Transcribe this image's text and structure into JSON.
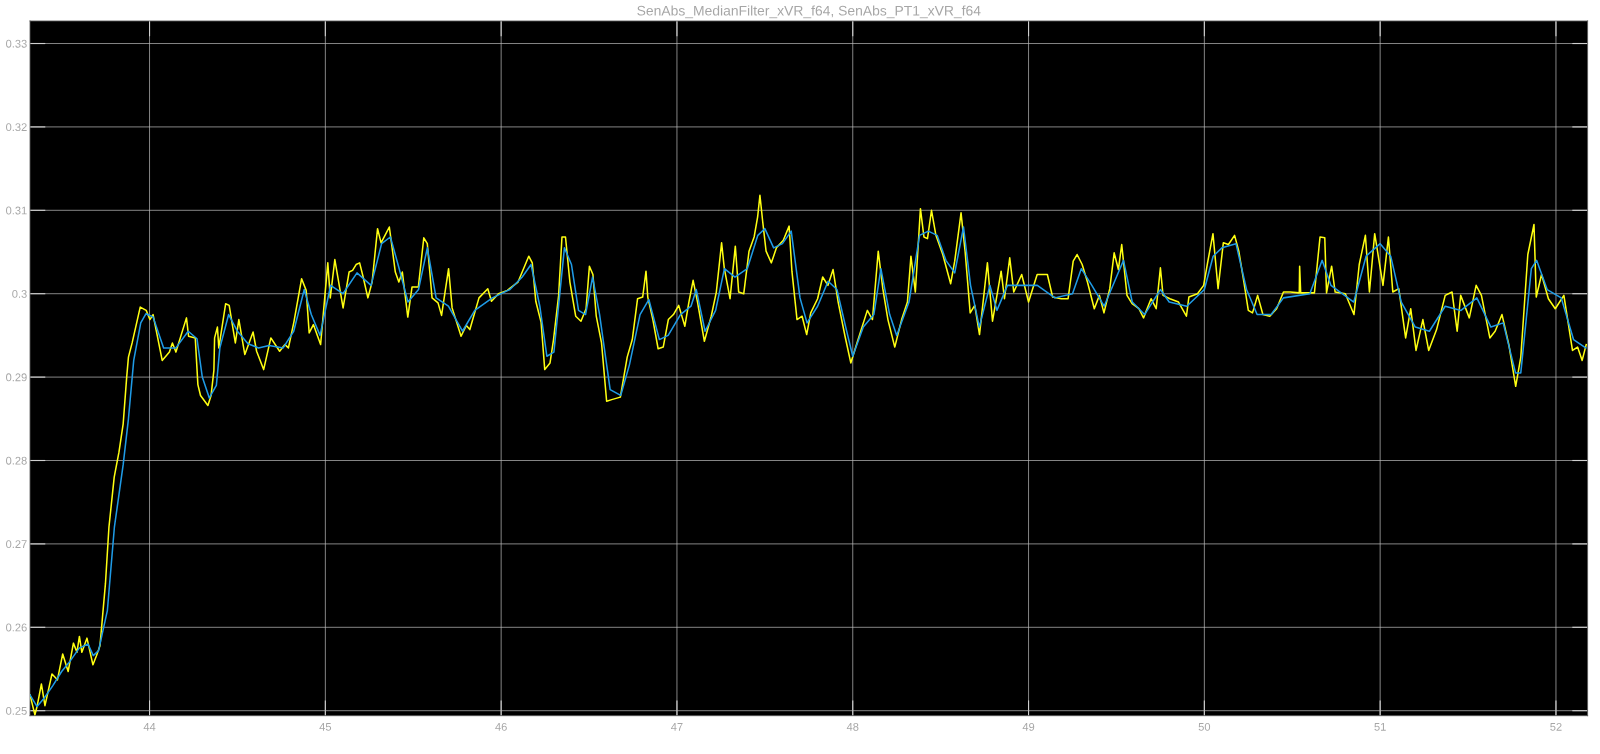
{
  "chart_data": {
    "type": "line",
    "title": "SenAbs_MedianFilter_xVR_f64, SenAbs_PT1_xVR_f64",
    "xlim": [
      43.32,
      52.18
    ],
    "ylim": [
      0.2494,
      0.3327
    ],
    "xticks": [
      44,
      45,
      46,
      47,
      48,
      49,
      50,
      51,
      52
    ],
    "yticks": [
      0.25,
      0.26,
      0.27,
      0.28,
      0.29,
      0.3,
      0.31,
      0.32,
      0.33
    ],
    "grid": true,
    "series": [
      {
        "color": "#ffff11",
        "x": [
          43.32,
          43.348,
          43.36,
          43.385,
          43.405,
          43.445,
          43.476,
          43.506,
          43.537,
          43.567,
          43.587,
          43.601,
          43.615,
          43.644,
          43.678,
          43.698,
          43.718,
          43.749,
          43.769,
          43.799,
          43.826,
          43.85,
          43.87,
          43.88,
          43.901,
          43.947,
          43.981,
          44.002,
          44.02,
          44.072,
          44.113,
          44.13,
          44.15,
          44.21,
          44.222,
          44.26,
          44.275,
          44.29,
          44.332,
          44.35,
          44.366,
          44.37,
          44.386,
          44.394,
          44.433,
          44.453,
          44.488,
          44.508,
          44.542,
          44.589,
          44.609,
          44.649,
          44.69,
          44.74,
          44.77,
          44.79,
          44.821,
          44.865,
          44.891,
          44.908,
          44.932,
          44.973,
          45.014,
          45.028,
          45.054,
          45.101,
          45.135,
          45.155,
          45.175,
          45.195,
          45.215,
          45.242,
          45.266,
          45.297,
          45.317,
          45.337,
          45.364,
          45.398,
          45.418,
          45.438,
          45.469,
          45.493,
          45.529,
          45.56,
          45.58,
          45.607,
          45.641,
          45.661,
          45.701,
          45.721,
          45.772,
          45.802,
          45.822,
          45.874,
          45.924,
          45.945,
          45.985,
          46.035,
          46.096,
          46.157,
          46.177,
          46.197,
          46.227,
          46.248,
          46.278,
          46.298,
          46.327,
          46.346,
          46.366,
          46.391,
          46.424,
          46.454,
          46.483,
          46.502,
          46.522,
          46.541,
          46.571,
          46.6,
          46.629,
          46.678,
          46.717,
          46.746,
          46.776,
          46.805,
          46.824,
          46.834,
          46.863,
          46.893,
          46.922,
          46.951,
          46.98,
          47.01,
          47.045,
          47.068,
          47.092,
          47.117,
          47.156,
          47.195,
          47.224,
          47.254,
          47.269,
          47.302,
          47.332,
          47.351,
          47.38,
          47.41,
          47.439,
          47.459,
          47.472,
          47.488,
          47.507,
          47.537,
          47.566,
          47.605,
          47.638,
          47.654,
          47.683,
          47.712,
          47.738,
          47.761,
          47.8,
          47.829,
          47.859,
          47.888,
          47.917,
          47.956,
          47.989,
          48.024,
          48.083,
          48.112,
          48.145,
          48.171,
          48.2,
          48.239,
          48.278,
          48.311,
          48.331,
          48.356,
          48.385,
          48.405,
          48.425,
          48.448,
          48.473,
          48.512,
          48.557,
          48.58,
          48.616,
          48.639,
          48.668,
          48.694,
          48.721,
          48.766,
          48.795,
          48.844,
          48.863,
          48.893,
          48.916,
          48.961,
          49.0,
          49.049,
          49.107,
          49.137,
          49.186,
          49.225,
          49.254,
          49.276,
          49.305,
          49.335,
          49.374,
          49.403,
          49.429,
          49.462,
          49.487,
          49.511,
          49.53,
          49.56,
          49.589,
          49.628,
          49.654,
          49.697,
          49.726,
          49.75,
          49.765,
          49.804,
          49.853,
          49.898,
          49.912,
          49.961,
          49.996,
          50.02,
          50.049,
          50.078,
          50.108,
          50.137,
          50.172,
          50.196,
          50.225,
          50.25,
          50.274,
          50.303,
          50.333,
          50.372,
          50.411,
          50.45,
          50.489,
          50.54,
          50.542,
          50.548,
          50.626,
          50.658,
          50.685,
          50.695,
          50.724,
          50.744,
          50.802,
          50.851,
          50.881,
          50.916,
          50.939,
          50.969,
          51.016,
          51.047,
          51.072,
          51.106,
          51.145,
          51.174,
          51.204,
          51.243,
          51.276,
          51.321,
          51.37,
          51.409,
          51.438,
          51.458,
          51.507,
          51.546,
          51.576,
          51.624,
          51.654,
          51.693,
          51.732,
          51.771,
          51.8,
          51.84,
          51.875,
          51.888,
          51.918,
          51.957,
          51.996,
          52.045,
          52.094,
          52.123,
          52.149,
          52.172
        ],
        "values": [
          0.2519,
          0.2495,
          0.2505,
          0.2532,
          0.2506,
          0.2544,
          0.2537,
          0.2568,
          0.2547,
          0.2581,
          0.257,
          0.2589,
          0.257,
          0.2587,
          0.2555,
          0.2566,
          0.2578,
          0.2652,
          0.272,
          0.278,
          0.281,
          0.2844,
          0.29,
          0.2924,
          0.2941,
          0.2984,
          0.298,
          0.2969,
          0.2975,
          0.292,
          0.293,
          0.2941,
          0.293,
          0.2971,
          0.2949,
          0.2947,
          0.2891,
          0.2878,
          0.2866,
          0.2878,
          0.2908,
          0.2947,
          0.296,
          0.2935,
          0.2988,
          0.2986,
          0.2941,
          0.2969,
          0.2927,
          0.2954,
          0.2931,
          0.2909,
          0.2947,
          0.2931,
          0.2939,
          0.2935,
          0.2966,
          0.3018,
          0.3004,
          0.2953,
          0.2963,
          0.2939,
          0.3037,
          0.2995,
          0.3041,
          0.2983,
          0.3026,
          0.3028,
          0.3035,
          0.3037,
          0.302,
          0.2995,
          0.3014,
          0.3078,
          0.3061,
          0.3069,
          0.308,
          0.3026,
          0.3014,
          0.3026,
          0.2972,
          0.3008,
          0.3008,
          0.3067,
          0.306,
          0.2995,
          0.2989,
          0.2974,
          0.303,
          0.2983,
          0.2949,
          0.2962,
          0.2957,
          0.2995,
          0.3006,
          0.2991,
          0.3,
          0.3004,
          0.3014,
          0.3045,
          0.3037,
          0.2991,
          0.2966,
          0.2909,
          0.2917,
          0.2945,
          0.2998,
          0.3068,
          0.3068,
          0.3014,
          0.2973,
          0.2967,
          0.2982,
          0.3033,
          0.3023,
          0.2973,
          0.2941,
          0.2871,
          0.2873,
          0.2876,
          0.2924,
          0.2945,
          0.2994,
          0.2996,
          0.3027,
          0.2996,
          0.2969,
          0.2934,
          0.2936,
          0.2969,
          0.2975,
          0.2986,
          0.2961,
          0.299,
          0.3016,
          0.299,
          0.2943,
          0.2973,
          0.3002,
          0.3061,
          0.3031,
          0.2994,
          0.3057,
          0.3002,
          0.3,
          0.3051,
          0.3068,
          0.3092,
          0.3118,
          0.3086,
          0.3051,
          0.3037,
          0.3055,
          0.3064,
          0.3081,
          0.3027,
          0.2969,
          0.2973,
          0.2951,
          0.2977,
          0.2994,
          0.302,
          0.301,
          0.3029,
          0.299,
          0.2949,
          0.2917,
          0.2941,
          0.298,
          0.2969,
          0.3051,
          0.3006,
          0.2969,
          0.2936,
          0.2969,
          0.299,
          0.3045,
          0.3002,
          0.3102,
          0.3068,
          0.3066,
          0.31,
          0.307,
          0.3047,
          0.3012,
          0.3039,
          0.3097,
          0.3051,
          0.2977,
          0.2986,
          0.2951,
          0.3037,
          0.2967,
          0.3027,
          0.2994,
          0.3043,
          0.3002,
          0.3023,
          0.299,
          0.3023,
          0.3023,
          0.2996,
          0.2994,
          0.2994,
          0.3039,
          0.3047,
          0.3035,
          0.3014,
          0.2982,
          0.2998,
          0.2977,
          0.3006,
          0.3049,
          0.3029,
          0.3059,
          0.2998,
          0.2988,
          0.2982,
          0.2971,
          0.2994,
          0.2982,
          0.3031,
          0.2998,
          0.2994,
          0.299,
          0.2973,
          0.2996,
          0.3,
          0.301,
          0.3039,
          0.3072,
          0.3006,
          0.3061,
          0.3059,
          0.307,
          0.3051,
          0.3014,
          0.298,
          0.2977,
          0.2998,
          0.2975,
          0.2973,
          0.2982,
          0.3002,
          0.3002,
          0.3001,
          0.3033,
          0.3001,
          0.3001,
          0.3068,
          0.3067,
          0.3001,
          0.3033,
          0.3002,
          0.3,
          0.2975,
          0.3035,
          0.307,
          0.3002,
          0.3072,
          0.301,
          0.3068,
          0.3002,
          0.3006,
          0.2947,
          0.2982,
          0.2932,
          0.2969,
          0.2932,
          0.2957,
          0.2998,
          0.3002,
          0.2955,
          0.2998,
          0.2971,
          0.301,
          0.2998,
          0.2947,
          0.2955,
          0.2975,
          0.2939,
          0.2889,
          0.2924,
          0.3047,
          0.3083,
          0.2996,
          0.3023,
          0.2994,
          0.2982,
          0.2998,
          0.2932,
          0.2936,
          0.292,
          0.2939
        ]
      },
      {
        "color": "#1f9be6",
        "x": [
          43.32,
          43.36,
          43.4,
          43.45,
          43.5,
          43.55,
          43.6,
          43.65,
          43.68,
          43.71,
          43.76,
          43.8,
          43.85,
          43.88,
          43.91,
          43.95,
          43.98,
          44.02,
          44.08,
          44.15,
          44.22,
          44.27,
          44.3,
          44.34,
          44.38,
          44.4,
          44.45,
          44.5,
          44.56,
          44.62,
          44.68,
          44.76,
          44.82,
          44.88,
          44.92,
          44.97,
          45.03,
          45.1,
          45.18,
          45.26,
          45.32,
          45.37,
          45.42,
          45.47,
          45.53,
          45.58,
          45.63,
          45.7,
          45.78,
          45.85,
          45.95,
          46.05,
          46.12,
          46.17,
          46.22,
          46.26,
          46.3,
          46.36,
          46.4,
          46.44,
          46.48,
          46.52,
          46.56,
          46.62,
          46.68,
          46.73,
          46.79,
          46.84,
          46.9,
          46.95,
          47.02,
          47.08,
          47.11,
          47.16,
          47.22,
          47.27,
          47.33,
          47.4,
          47.46,
          47.5,
          47.55,
          47.6,
          47.65,
          47.7,
          47.74,
          47.8,
          47.86,
          47.91,
          47.96,
          48.0,
          48.06,
          48.12,
          48.16,
          48.21,
          48.25,
          48.32,
          48.38,
          48.43,
          48.48,
          48.53,
          48.58,
          48.63,
          48.67,
          48.72,
          48.78,
          48.82,
          48.88,
          48.95,
          49.05,
          49.15,
          49.25,
          49.3,
          49.36,
          49.43,
          49.5,
          49.54,
          49.59,
          49.66,
          49.75,
          49.8,
          49.9,
          50.0,
          50.05,
          50.1,
          50.18,
          50.24,
          50.3,
          50.38,
          50.45,
          50.6,
          50.67,
          50.72,
          50.85,
          50.92,
          51.0,
          51.06,
          51.12,
          51.2,
          51.28,
          51.37,
          51.46,
          51.55,
          51.63,
          51.7,
          51.77,
          51.8,
          51.86,
          51.89,
          51.95,
          52.03,
          52.1,
          52.17
        ],
        "values": [
          0.2519,
          0.2505,
          0.2515,
          0.253,
          0.2547,
          0.256,
          0.2575,
          0.258,
          0.2566,
          0.2572,
          0.262,
          0.272,
          0.2795,
          0.285,
          0.292,
          0.2965,
          0.2976,
          0.2972,
          0.2935,
          0.2935,
          0.2955,
          0.2946,
          0.29,
          0.2875,
          0.289,
          0.2935,
          0.2975,
          0.2955,
          0.294,
          0.2935,
          0.2938,
          0.2935,
          0.2955,
          0.3005,
          0.2975,
          0.295,
          0.301,
          0.3,
          0.3025,
          0.301,
          0.306,
          0.3068,
          0.303,
          0.299,
          0.3005,
          0.3055,
          0.2995,
          0.2985,
          0.2955,
          0.298,
          0.2995,
          0.3005,
          0.302,
          0.3035,
          0.2985,
          0.2925,
          0.293,
          0.3055,
          0.3035,
          0.298,
          0.2975,
          0.302,
          0.2975,
          0.2885,
          0.2878,
          0.2915,
          0.2975,
          0.2993,
          0.2945,
          0.295,
          0.2975,
          0.2985,
          0.3005,
          0.2955,
          0.298,
          0.303,
          0.302,
          0.303,
          0.307,
          0.3078,
          0.3055,
          0.306,
          0.3075,
          0.2995,
          0.2965,
          0.2985,
          0.3015,
          0.3005,
          0.296,
          0.2925,
          0.296,
          0.2975,
          0.303,
          0.2975,
          0.295,
          0.299,
          0.307,
          0.3075,
          0.307,
          0.304,
          0.3025,
          0.308,
          0.301,
          0.296,
          0.301,
          0.298,
          0.301,
          0.301,
          0.301,
          0.2995,
          0.3,
          0.303,
          0.301,
          0.2985,
          0.302,
          0.304,
          0.299,
          0.2975,
          0.3005,
          0.299,
          0.2985,
          0.3005,
          0.3045,
          0.3055,
          0.306,
          0.3005,
          0.2975,
          0.2975,
          0.2995,
          0.3,
          0.304,
          0.301,
          0.299,
          0.3045,
          0.306,
          0.3045,
          0.299,
          0.296,
          0.2955,
          0.2985,
          0.298,
          0.2995,
          0.296,
          0.2965,
          0.2905,
          0.2905,
          0.303,
          0.304,
          0.3005,
          0.2995,
          0.2945,
          0.2935
        ]
      }
    ]
  }
}
